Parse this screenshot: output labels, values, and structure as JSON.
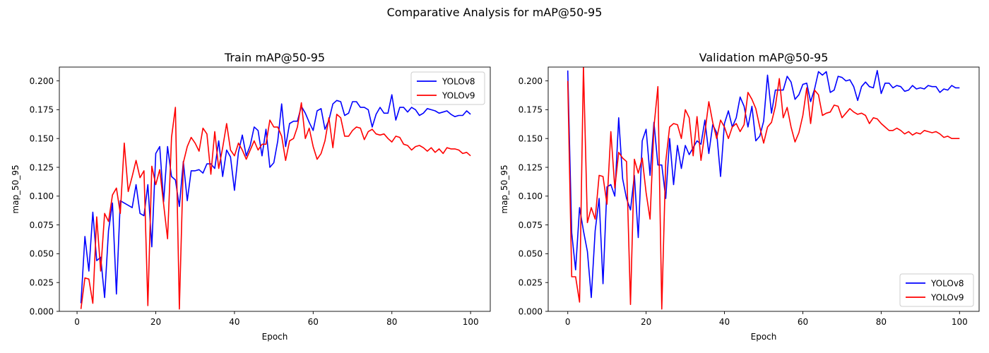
{
  "suptitle": "Comparative Analysis for mAP@50-95",
  "chart_data": [
    {
      "type": "line",
      "title": "Train mAP@50-95",
      "xlabel": "Epoch",
      "ylabel": "map_50_95",
      "xlim": [
        -4.5,
        105
      ],
      "ylim": [
        0,
        0.212
      ],
      "xticks": [
        0,
        20,
        40,
        60,
        80,
        100
      ],
      "yticks": [
        0.0,
        0.025,
        0.05,
        0.075,
        0.1,
        0.125,
        0.15,
        0.175,
        0.2
      ],
      "ytick_labels": [
        "0.000",
        "0.025",
        "0.050",
        "0.075",
        "0.100",
        "0.125",
        "0.150",
        "0.175",
        "0.200"
      ],
      "grid": false,
      "legend_position": "upper-right",
      "series": [
        {
          "name": "YOLOv8",
          "color": "#0000ff",
          "x_start": 1,
          "values": [
            0.007,
            0.065,
            0.035,
            0.086,
            0.044,
            0.047,
            0.012,
            0.07,
            0.094,
            0.015,
            0.096,
            0.094,
            0.092,
            0.09,
            0.11,
            0.085,
            0.083,
            0.11,
            0.056,
            0.137,
            0.143,
            0.095,
            0.143,
            0.117,
            0.114,
            0.091,
            0.13,
            0.096,
            0.122,
            0.122,
            0.123,
            0.12,
            0.128,
            0.128,
            0.124,
            0.148,
            0.117,
            0.14,
            0.134,
            0.105,
            0.138,
            0.153,
            0.135,
            0.144,
            0.16,
            0.157,
            0.135,
            0.158,
            0.125,
            0.129,
            0.148,
            0.18,
            0.143,
            0.163,
            0.165,
            0.165,
            0.178,
            0.172,
            0.164,
            0.157,
            0.174,
            0.176,
            0.158,
            0.166,
            0.18,
            0.183,
            0.182,
            0.17,
            0.172,
            0.182,
            0.182,
            0.177,
            0.177,
            0.175,
            0.16,
            0.171,
            0.177,
            0.172,
            0.172,
            0.188,
            0.166,
            0.177,
            0.177,
            0.173,
            0.177,
            0.175,
            0.17,
            0.172,
            0.176,
            0.175,
            0.174,
            0.172,
            0.173,
            0.174,
            0.171,
            0.169,
            0.17,
            0.17,
            0.174,
            0.171
          ]
        },
        {
          "name": "YOLOv9",
          "color": "#ff0000",
          "x_start": 1,
          "values": [
            0.002,
            0.029,
            0.028,
            0.007,
            0.082,
            0.035,
            0.085,
            0.078,
            0.101,
            0.107,
            0.085,
            0.146,
            0.104,
            0.117,
            0.131,
            0.116,
            0.122,
            0.005,
            0.126,
            0.11,
            0.123,
            0.093,
            0.063,
            0.151,
            0.177,
            0.002,
            0.129,
            0.143,
            0.151,
            0.146,
            0.139,
            0.159,
            0.154,
            0.119,
            0.156,
            0.124,
            0.142,
            0.163,
            0.14,
            0.135,
            0.146,
            0.14,
            0.132,
            0.14,
            0.148,
            0.14,
            0.145,
            0.145,
            0.166,
            0.16,
            0.16,
            0.152,
            0.131,
            0.148,
            0.15,
            0.16,
            0.181,
            0.15,
            0.159,
            0.143,
            0.132,
            0.137,
            0.148,
            0.168,
            0.142,
            0.171,
            0.168,
            0.152,
            0.152,
            0.157,
            0.16,
            0.159,
            0.149,
            0.156,
            0.158,
            0.154,
            0.153,
            0.154,
            0.15,
            0.147,
            0.152,
            0.151,
            0.145,
            0.144,
            0.14,
            0.143,
            0.144,
            0.142,
            0.139,
            0.142,
            0.138,
            0.141,
            0.137,
            0.142,
            0.141,
            0.141,
            0.14,
            0.137,
            0.138,
            0.135
          ]
        }
      ]
    },
    {
      "type": "line",
      "title": "Validation mAP@50-95",
      "xlabel": "Epoch",
      "ylabel": "map_50_95",
      "xlim": [
        -5,
        105
      ],
      "ylim": [
        0,
        0.212
      ],
      "xticks": [
        0,
        20,
        40,
        60,
        80,
        100
      ],
      "yticks": [
        0.0,
        0.025,
        0.05,
        0.075,
        0.1,
        0.125,
        0.15,
        0.175,
        0.2
      ],
      "ytick_labels": [
        "0.000",
        "0.025",
        "0.050",
        "0.075",
        "0.100",
        "0.125",
        "0.150",
        "0.175",
        "0.200"
      ],
      "grid": false,
      "legend_position": "lower-right",
      "series": [
        {
          "name": "YOLOv8",
          "color": "#0000ff",
          "x_start": 0,
          "values": [
            0.209,
            0.068,
            0.036,
            0.09,
            0.07,
            0.052,
            0.012,
            0.07,
            0.098,
            0.024,
            0.108,
            0.11,
            0.1,
            0.168,
            0.115,
            0.098,
            0.088,
            0.118,
            0.064,
            0.148,
            0.158,
            0.118,
            0.164,
            0.127,
            0.127,
            0.098,
            0.15,
            0.11,
            0.144,
            0.124,
            0.144,
            0.136,
            0.142,
            0.148,
            0.145,
            0.166,
            0.137,
            0.162,
            0.155,
            0.117,
            0.163,
            0.174,
            0.16,
            0.168,
            0.186,
            0.178,
            0.16,
            0.178,
            0.148,
            0.152,
            0.165,
            0.205,
            0.172,
            0.192,
            0.192,
            0.192,
            0.204,
            0.199,
            0.184,
            0.188,
            0.197,
            0.198,
            0.182,
            0.193,
            0.208,
            0.205,
            0.208,
            0.19,
            0.192,
            0.204,
            0.203,
            0.2,
            0.201,
            0.195,
            0.183,
            0.195,
            0.199,
            0.195,
            0.194,
            0.209,
            0.189,
            0.198,
            0.198,
            0.194,
            0.196,
            0.195,
            0.191,
            0.192,
            0.196,
            0.193,
            0.194,
            0.193,
            0.196,
            0.195,
            0.195,
            0.19,
            0.193,
            0.192,
            0.196,
            0.194,
            0.194
          ]
        },
        {
          "name": "YOLOv9",
          "color": "#ff0000",
          "x_start": 0,
          "values": [
            0.2,
            0.03,
            0.03,
            0.008,
            0.213,
            0.077,
            0.09,
            0.08,
            0.118,
            0.117,
            0.093,
            0.156,
            0.107,
            0.138,
            0.133,
            0.13,
            0.006,
            0.132,
            0.12,
            0.133,
            0.103,
            0.08,
            0.16,
            0.195,
            0.002,
            0.13,
            0.16,
            0.163,
            0.162,
            0.15,
            0.175,
            0.168,
            0.135,
            0.169,
            0.131,
            0.155,
            0.182,
            0.164,
            0.15,
            0.166,
            0.16,
            0.15,
            0.16,
            0.163,
            0.156,
            0.162,
            0.19,
            0.184,
            0.176,
            0.16,
            0.146,
            0.16,
            0.164,
            0.178,
            0.202,
            0.168,
            0.177,
            0.16,
            0.147,
            0.155,
            0.17,
            0.194,
            0.163,
            0.192,
            0.188,
            0.17,
            0.172,
            0.173,
            0.179,
            0.178,
            0.168,
            0.172,
            0.176,
            0.173,
            0.171,
            0.172,
            0.17,
            0.163,
            0.168,
            0.167,
            0.163,
            0.16,
            0.157,
            0.157,
            0.159,
            0.157,
            0.154,
            0.156,
            0.153,
            0.155,
            0.154,
            0.157,
            0.156,
            0.155,
            0.156,
            0.154,
            0.151,
            0.152,
            0.15,
            0.15,
            0.15
          ]
        }
      ]
    }
  ]
}
